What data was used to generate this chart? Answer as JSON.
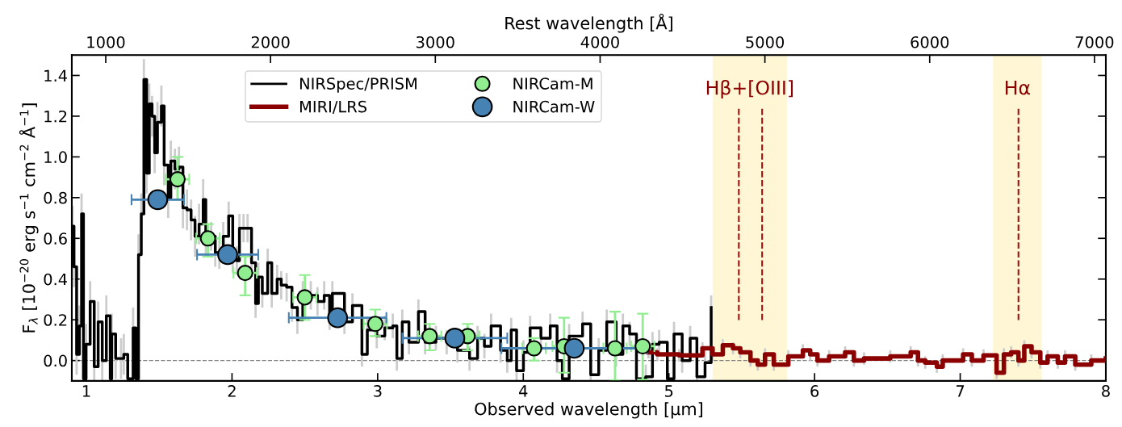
{
  "chart_data": {
    "type": "step",
    "xlabel": "Observed wavelength [µm]",
    "ylabel": "F$_{λ}$ [10$^{−20}$ erg s$^{−1}$ cm$^{−2}$ Å$^{−1}$]",
    "x2label": "Rest wavelength [Å]",
    "xlim": [
      0.9,
      8
    ],
    "xticks": [
      1,
      2,
      3,
      4,
      5,
      6,
      7,
      8
    ],
    "ylim": [
      -0.1,
      1.5
    ],
    "yticks": [
      {
        "value": 0,
        "label": "0.0"
      },
      0.2,
      0.4,
      0.6,
      0.8,
      {
        "value": 1,
        "label": "1.0"
      },
      1.2,
      1.4
    ],
    "x2lim": [
      794,
      7069
    ],
    "x2ticks": [
      1000,
      2000,
      3000,
      4000,
      5000,
      6000,
      7000
    ],
    "legend": "top",
    "grid": false,
    "series": [
      {
        "name": "NIRSpec/PRISM",
        "color": "#000000",
        "x": [
          0.905,
          0.915,
          0.933,
          0.952,
          0.967,
          0.98,
          0.998,
          1.026,
          1.054,
          1.081,
          1.109,
          1.137,
          1.164,
          1.174,
          1.201,
          1.238,
          1.257,
          1.284,
          1.321,
          1.34,
          1.358,
          1.377,
          1.395,
          1.414,
          1.432,
          1.451,
          1.469,
          1.488,
          1.515,
          1.534,
          1.562,
          1.58,
          1.608,
          1.636,
          1.663,
          1.691,
          1.719,
          1.746,
          1.774,
          1.802,
          1.82,
          1.857,
          1.885,
          1.913,
          1.94,
          1.977,
          2.005,
          2.033,
          2.051,
          2.079,
          2.107,
          2.134,
          2.162,
          2.181,
          2.208,
          2.245,
          2.273,
          2.31,
          2.338,
          2.375,
          2.412,
          2.449,
          2.486,
          2.541,
          2.587,
          2.633,
          2.67,
          2.689,
          2.772,
          2.827,
          2.892,
          2.929,
          2.994,
          3.049,
          3.104,
          3.132,
          3.169,
          3.215,
          3.28,
          3.326,
          3.4,
          3.474,
          3.548,
          3.631,
          3.686,
          3.733,
          3.779,
          3.844,
          3.89,
          3.917,
          3.954,
          4.001,
          4.047,
          4.121,
          4.185,
          4.232,
          4.268,
          4.315,
          4.407,
          4.463,
          4.518,
          4.573,
          4.638,
          4.684,
          4.73,
          4.777,
          4.841,
          4.887,
          4.933,
          4.989,
          5.035,
          5.091,
          5.146,
          5.192,
          5.248,
          5.29
        ],
        "values": [
          0.66,
          0.46,
          0.03,
          0.17,
          0.72,
          -0.09,
          0.08,
          0.29,
          -0.03,
          0.19,
          0.0,
          0.22,
          -0.09,
          0.13,
          0.01,
          0.01,
          0.03,
          -0.09,
          0.16,
          -0.09,
          0.52,
          0.72,
          1.38,
          0.92,
          1.26,
          1.2,
          1.02,
          1.17,
          1.25,
          0.96,
          0.8,
          0.98,
          0.94,
          0.95,
          0.75,
          0.74,
          0.69,
          0.61,
          0.67,
          0.79,
          0.58,
          0.61,
          0.53,
          0.52,
          0.61,
          0.71,
          0.5,
          0.49,
          0.65,
          0.65,
          0.65,
          0.48,
          0.28,
          0.41,
          0.33,
          0.48,
          0.33,
          0.4,
          0.37,
          0.36,
          0.26,
          0.2,
          0.32,
          0.32,
          0.29,
          0.32,
          0.21,
          0.33,
          0.19,
          0.27,
          0.03,
          0.15,
          0.12,
          0.16,
          0.17,
          0.01,
          0.19,
          0.09,
          0.24,
          0.09,
          0.11,
          0.09,
          0.05,
          0.01,
          0.11,
          0.07,
          0.17,
          0.05,
          0.0,
          0.15,
          -0.05,
          0.04,
          0.16,
          0.11,
          0.17,
          0.0,
          -0.09,
          0.12,
          0.18,
          -0.07,
          0.05,
          0.19,
          0.03,
          0.17,
          0.13,
          -0.09,
          -0.08,
          0.08,
          0.09,
          -0.09,
          0.13,
          0.0,
          0.11,
          -0.08,
          -0.01,
          0.26
        ],
        "errors": [
          0.1,
          0.1,
          0.1,
          0.1,
          0.1,
          [
            -0.09,
            0.01
          ],
          0.1,
          0.1,
          [
            -0.1,
            0.07
          ],
          0.1,
          0.1,
          0.1,
          [
            -0.09,
            0.01
          ],
          0.1,
          0.1,
          0.1,
          0.1,
          [
            -0.09,
            0.01
          ],
          0.1,
          null,
          0.1,
          0.1,
          0.1,
          0.1,
          0.1,
          0.1,
          0.1,
          0.1,
          0.1,
          0.1,
          0.1,
          0.1,
          0.1,
          0.1,
          0.1,
          0.1,
          0.1,
          0.1,
          0.1,
          0.1,
          0.07,
          0.07,
          0.07,
          0.07,
          0.07,
          0.07,
          0.07,
          0.07,
          0.07,
          0.07,
          0.07,
          0.07,
          0.07,
          0.07,
          0.07,
          0.07,
          0.07,
          0.07,
          0.07,
          0.07,
          0.07,
          0.07,
          0.07,
          0.07,
          0.07,
          0.07,
          0.06,
          0.06,
          0.06,
          0.06,
          0.06,
          0.06,
          0.06,
          0.06,
          0.06,
          0.06,
          0.06,
          0.06,
          0.06,
          0.06,
          0.06,
          0.06,
          0.06,
          0.06,
          0.06,
          0.06,
          0.06,
          0.06,
          0.06,
          0.06,
          [
            -0.1,
            0.01
          ],
          0.06,
          0.06,
          0.06,
          0.06,
          0.06,
          [
            -0.1,
            -0.03
          ],
          0.06,
          0.06,
          [
            -0.1,
            -0.01
          ],
          0.06,
          0.06,
          0.06,
          0.06,
          0.06,
          [
            -0.1,
            -0.03
          ],
          [
            -0.1,
            -0.02
          ],
          0.06,
          0.06,
          [
            -0.1,
            -0.03
          ],
          0.06,
          0.06,
          0.06,
          [
            -0.1,
            -0.02
          ],
          0.06,
          0.06
        ]
      },
      {
        "name": "MIRI/LRS",
        "color": "#8b0000",
        "x": [
          4.86,
          4.92,
          5.07,
          5.23,
          5.3,
          5.37,
          5.44,
          5.49,
          5.56,
          5.61,
          5.66,
          5.72,
          5.82,
          5.92,
          5.97,
          6.02,
          6.1,
          6.21,
          6.27,
          6.34,
          6.52,
          6.66,
          6.71,
          6.76,
          6.84,
          6.88,
          7.02,
          7.08,
          7.16,
          7.25,
          7.3,
          7.35,
          7.4,
          7.44,
          7.49,
          7.55,
          7.6,
          7.67,
          7.72,
          7.79,
          7.9,
          8.0
        ],
        "values": [
          0.04,
          0.03,
          0.025,
          0.06,
          0.03,
          0.075,
          0.06,
          0.04,
          0.0,
          -0.02,
          0.03,
          -0.02,
          0.02,
          0.05,
          0.03,
          0.0,
          0.02,
          0.04,
          0.0,
          0.01,
          0.02,
          0.04,
          0.0,
          -0.01,
          -0.03,
          0.0,
          0.03,
          0.0,
          0.025,
          -0.06,
          0.03,
          0.04,
          0.0,
          0.07,
          0.04,
          -0.01,
          0.02,
          -0.01,
          0.02,
          -0.02,
          0.0,
          0.01
        ],
        "errors": [
          0.03,
          0.03,
          0.03,
          0.03,
          0.03,
          0.03,
          0.03,
          0.03,
          0.03,
          0.03,
          0.03,
          0.03,
          0.03,
          0.03,
          0.03,
          0.03,
          0.03,
          0.03,
          0.03,
          0.03,
          0.03,
          0.03,
          0.03,
          0.03,
          0.03,
          0.03,
          0.03,
          0.03,
          0.03,
          0.03,
          0.03,
          0.03,
          0.03,
          0.03,
          0.03,
          0.03,
          0.03,
          0.03,
          0.03,
          0.03,
          0.03,
          0.03
        ]
      },
      {
        "name": "NIRCam-M",
        "type": "scatter",
        "marker": "circle",
        "color": "#90ee90",
        "x": [
          1.626,
          1.835,
          2.09,
          2.5,
          2.984,
          3.357,
          3.618,
          4.074,
          4.28,
          4.63,
          4.82
        ],
        "values": [
          0.89,
          0.6,
          0.43,
          0.31,
          0.18,
          0.12,
          0.12,
          0.06,
          0.07,
          0.06,
          0.07
        ],
        "errors": [
          [
            0.79,
            1.0
          ],
          [
            0.51,
            0.67
          ],
          [
            0.32,
            0.51
          ],
          [
            0.2,
            0.42
          ],
          [
            0.12,
            0.25
          ],
          [
            0.05,
            0.18
          ],
          [
            0.05,
            0.18
          ],
          [
            0.0,
            0.11
          ],
          [
            -0.06,
            0.21
          ],
          [
            -0.097,
            0.24
          ],
          [
            -0.094,
            0.23
          ]
        ],
        "xerrors": [
          0.08,
          0.08,
          0.08,
          0.08,
          0.08,
          0.08,
          0.08,
          0.08,
          0.08,
          0.08,
          0.08
        ]
      },
      {
        "name": "NIRCam-W",
        "type": "scatter",
        "marker": "circle",
        "color": "#4682b4",
        "x": [
          1.49,
          1.97,
          2.725,
          3.53,
          4.35
        ],
        "values": [
          0.79,
          0.52,
          0.21,
          0.11,
          0.06
        ],
        "errors": [
          0.02,
          0.02,
          0.02,
          0.02,
          0.02
        ],
        "xerrors": [
          [
            1.31,
            1.67
          ],
          [
            1.76,
            2.18
          ],
          [
            2.39,
            3.06
          ],
          [
            3.17,
            3.89
          ],
          [
            3.85,
            4.85
          ]
        ]
      }
    ],
    "bands": [
      {
        "axis": "x",
        "from": 5.3,
        "to": 5.81,
        "label": "Hβ+[OIII]",
        "color": "#fff6d5"
      },
      {
        "axis": "x",
        "from": 7.225,
        "to": 7.56,
        "label": "Hα",
        "color": "#fff6d5"
      }
    ],
    "ref_lines": [
      {
        "axis": "y",
        "value": 0,
        "color": "#808080",
        "line_style": "dashed"
      },
      {
        "axis": "x",
        "value": 5.48,
        "color": "#a01010",
        "line_style": "dashed"
      },
      {
        "axis": "x",
        "value": 5.64,
        "color": "#a01010",
        "line_style": "dashed"
      },
      {
        "axis": "x",
        "value": 7.4,
        "color": "#a01010",
        "line_style": "dashed"
      }
    ]
  }
}
